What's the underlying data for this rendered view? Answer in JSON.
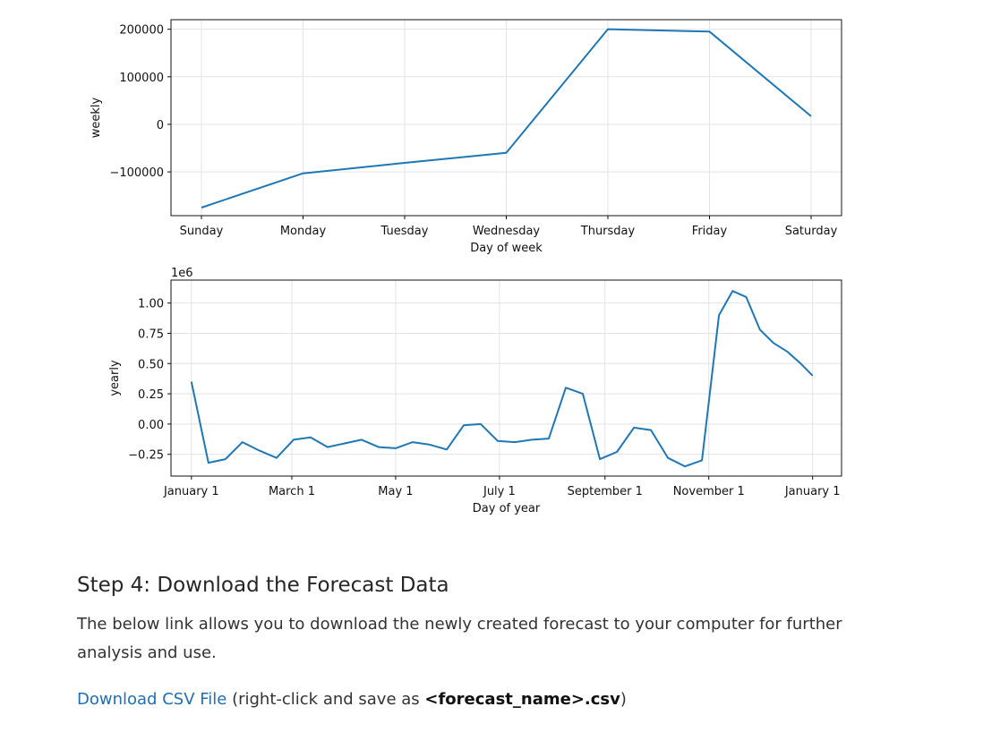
{
  "chart_data": [
    {
      "type": "line",
      "ylabel": "weekly",
      "xlabel": "Day of week",
      "categories": [
        "Sunday",
        "Monday",
        "Tuesday",
        "Wednesday",
        "Thursday",
        "Friday",
        "Saturday"
      ],
      "values": [
        -175000,
        -103000,
        -81000,
        -60000,
        200000,
        195000,
        17000
      ],
      "ylim": [
        -192000,
        220000
      ],
      "yticks": [
        -100000,
        0,
        100000,
        200000
      ],
      "ytick_labels": [
        "−100000",
        "0",
        "100000",
        "200000"
      ],
      "grid": true,
      "line_color": "#1f77b4"
    },
    {
      "type": "line",
      "ylabel": "yearly",
      "xlabel": "Day of year",
      "y_offset_label": "1e6",
      "x": [
        0,
        10,
        20,
        30,
        40,
        50,
        60,
        70,
        80,
        90,
        100,
        110,
        120,
        130,
        140,
        150,
        160,
        170,
        180,
        190,
        200,
        210,
        220,
        230,
        240,
        250,
        260,
        270,
        280,
        290,
        300,
        305,
        310,
        318,
        326,
        334,
        342,
        350,
        358,
        365
      ],
      "values": [
        0.35,
        -0.32,
        -0.29,
        -0.15,
        -0.22,
        -0.28,
        -0.13,
        -0.11,
        -0.19,
        -0.16,
        -0.13,
        -0.19,
        -0.2,
        -0.15,
        -0.17,
        -0.21,
        -0.01,
        0.0,
        -0.14,
        -0.15,
        -0.13,
        -0.12,
        0.3,
        0.25,
        -0.29,
        -0.23,
        -0.03,
        -0.05,
        -0.28,
        -0.35,
        -0.3,
        0.3,
        0.9,
        1.1,
        1.05,
        0.78,
        0.67,
        0.6,
        0.5,
        0.4
      ],
      "xlim": [
        -12,
        382
      ],
      "ylim": [
        -0.43,
        1.19
      ],
      "yticks": [
        -0.25,
        0.0,
        0.25,
        0.5,
        0.75,
        1.0
      ],
      "ytick_labels": [
        "−0.25",
        "0.00",
        "0.25",
        "0.50",
        "0.75",
        "1.00"
      ],
      "xticks": [
        0,
        59,
        120,
        181,
        243,
        304,
        365
      ],
      "xtick_labels": [
        "January 1",
        "March 1",
        "May 1",
        "July 1",
        "September 1",
        "November 1",
        "January 1"
      ],
      "grid": true,
      "line_color": "#1f77b4"
    }
  ],
  "section": {
    "heading": "Step 4: Download the Forecast Data",
    "paragraph": "The below link allows you to download the newly created forecast to your computer for further analysis and use.",
    "link_text": "Download CSV File",
    "note_prefix": " (right-click and save as ",
    "note_bold": "<forecast_name>.csv",
    "note_suffix": ")"
  }
}
